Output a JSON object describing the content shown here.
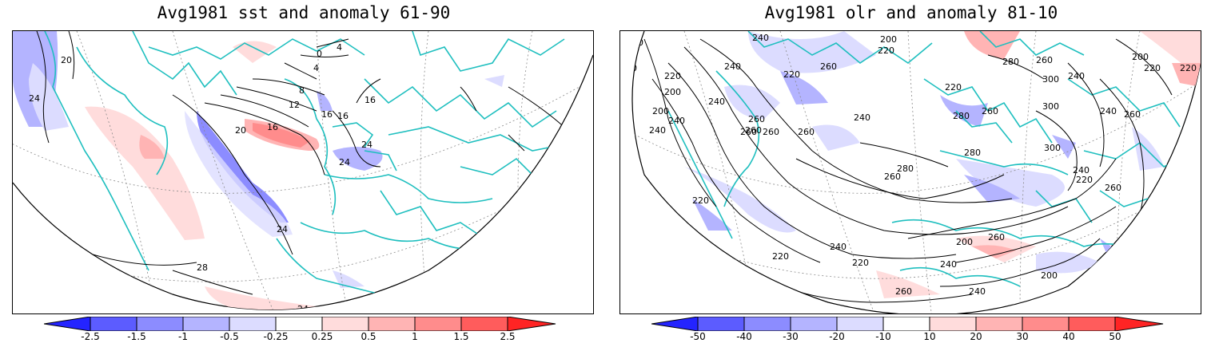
{
  "panels": [
    {
      "title": "Avg1981 sst and anomaly 61-90",
      "colorbar": {
        "ticks": [
          "-2.5",
          "-1.5",
          "-1",
          "-0.5",
          "-0.25",
          "0.25",
          "0.5",
          "1",
          "1.5",
          "2.5"
        ],
        "colors": [
          "#2424ff",
          "#5c5cff",
          "#8c8cff",
          "#b4b4ff",
          "#dcdcff",
          "#ffffff",
          "#ffdcdc",
          "#ffb4b4",
          "#ff8c8c",
          "#ff5c5c",
          "#ff2424"
        ]
      },
      "contour_labels": [
        "20",
        "24",
        "28",
        "20",
        "16",
        "12",
        "8",
        "4",
        "0",
        "4",
        "16",
        "16",
        "24",
        "24",
        "28",
        "24",
        "24",
        "16"
      ]
    },
    {
      "title": "Avg1981 olr and anomaly 81-10",
      "colorbar": {
        "ticks": [
          "-50",
          "-40",
          "-30",
          "-20",
          "-10",
          "10",
          "20",
          "30",
          "40",
          "50"
        ],
        "colors": [
          "#2424ff",
          "#5c5cff",
          "#8c8cff",
          "#b4b4ff",
          "#dcdcff",
          "#ffffff",
          "#ffdcdc",
          "#ffb4b4",
          "#ff8c8c",
          "#ff5c5c",
          "#ff2424"
        ]
      },
      "contour_labels": [
        "260",
        "240",
        "200",
        "220",
        "260",
        "220",
        "200",
        "240",
        "260",
        "280",
        "200",
        "220",
        "220",
        "260",
        "300",
        "240",
        "220",
        "260",
        "260",
        "260",
        "240",
        "240",
        "200",
        "240",
        "260",
        "280",
        "300",
        "240",
        "260",
        "240",
        "220",
        "220",
        "260",
        "280",
        "300",
        "260",
        "280",
        "260",
        "260",
        "220",
        "260",
        "240",
        "220",
        "220",
        "240",
        "220",
        "200",
        "240",
        "200",
        "260",
        "240",
        "260"
      ]
    }
  ],
  "colors": {
    "coast": "#1fbfbf",
    "contour": "#000000",
    "grid": "#8a8a8a"
  }
}
